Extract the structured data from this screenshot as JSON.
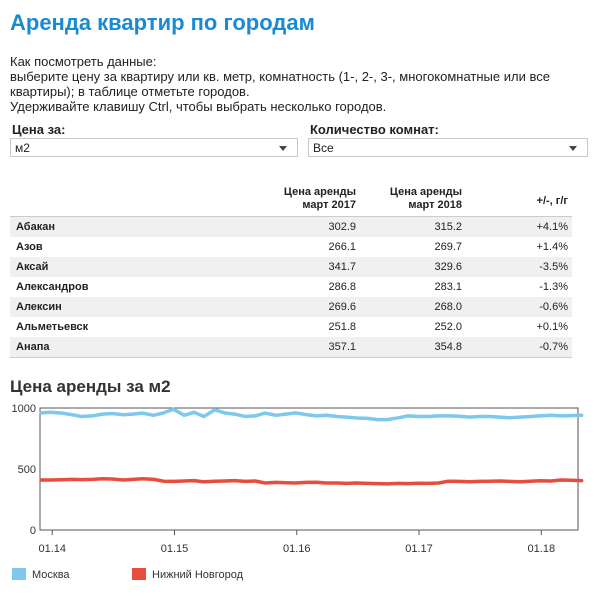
{
  "page": {
    "title": "Аренда квартир по городам",
    "intro": [
      "Как посмотреть данные:",
      "выберите цену за квартиру или кв. метр, комнатность (1-, 2-, 3-, многокомнатные или все",
      "квартиры); в таблице отметьте городов.",
      "Удерживайте клавишу Ctrl, чтобы выбрать несколько городов."
    ]
  },
  "controls": {
    "price_label": "Цена за:",
    "price_value": "м2",
    "rooms_label": "Количество комнат:",
    "rooms_value": "Все"
  },
  "table": {
    "headers": {
      "col1": [
        "Цена аренды",
        "март 2017"
      ],
      "col2": [
        "Цена аренды",
        "март 2018"
      ],
      "col3": "+/-, г/г"
    },
    "rows": [
      {
        "city": "Абакан",
        "v2017": "302.9",
        "v2018": "315.2",
        "change": "+4.1%"
      },
      {
        "city": "Азов",
        "v2017": "266.1",
        "v2018": "269.7",
        "change": "+1.4%"
      },
      {
        "city": "Аксай",
        "v2017": "341.7",
        "v2018": "329.6",
        "change": "-3.5%"
      },
      {
        "city": "Александров",
        "v2017": "286.8",
        "v2018": "283.1",
        "change": "-1.3%"
      },
      {
        "city": "Алексин",
        "v2017": "269.6",
        "v2018": "268.0",
        "change": "-0.6%"
      },
      {
        "city": "Альметьевск",
        "v2017": "251.8",
        "v2018": "252.0",
        "change": "+0.1%"
      },
      {
        "city": "Анапа",
        "v2017": "357.1",
        "v2018": "354.8",
        "change": "-0.7%"
      }
    ]
  },
  "chart_data": {
    "type": "line",
    "title": "Цена аренды за м2",
    "xlabel": "",
    "ylabel": "",
    "ylim": [
      0,
      1000
    ],
    "yticks": [
      0,
      500,
      1000
    ],
    "xlim": [
      2013.9,
      2018.3
    ],
    "xticks": [
      {
        "value": 2014.0,
        "label": "01.14"
      },
      {
        "value": 2015.0,
        "label": "01.15"
      },
      {
        "value": 2016.0,
        "label": "01.16"
      },
      {
        "value": 2017.0,
        "label": "01.17"
      },
      {
        "value": 2018.0,
        "label": "01.18"
      }
    ],
    "grid": false,
    "legend_position": "bottom-left",
    "series": [
      {
        "name": "Москва",
        "color": "#7ec8ec",
        "x": [
          2013.75,
          2013.83,
          2013.92,
          2014.0,
          2014.08,
          2014.17,
          2014.25,
          2014.33,
          2014.42,
          2014.5,
          2014.58,
          2014.67,
          2014.75,
          2014.83,
          2014.92,
          2015.0,
          2015.08,
          2015.17,
          2015.25,
          2015.33,
          2015.42,
          2015.5,
          2015.58,
          2015.67,
          2015.75,
          2015.83,
          2015.92,
          2016.0,
          2016.08,
          2016.17,
          2016.25,
          2016.33,
          2016.42,
          2016.5,
          2016.58,
          2016.67,
          2016.75,
          2016.83,
          2016.92,
          2017.0,
          2017.08,
          2017.17,
          2017.25,
          2017.33,
          2017.42,
          2017.5,
          2017.58,
          2017.67,
          2017.75,
          2017.83,
          2017.92,
          2018.0,
          2018.08,
          2018.17
        ],
        "values": [
          960,
          965,
          958,
          945,
          930,
          935,
          950,
          955,
          945,
          950,
          958,
          940,
          960,
          990,
          940,
          965,
          930,
          985,
          960,
          950,
          930,
          935,
          958,
          940,
          950,
          960,
          945,
          935,
          940,
          930,
          925,
          918,
          915,
          905,
          905,
          920,
          935,
          930,
          930,
          935,
          935,
          932,
          925,
          930,
          930,
          925,
          920,
          925,
          930,
          935,
          940,
          935,
          938,
          940
        ]
      },
      {
        "name": "Нижний Новгород",
        "color": "#e84c3d",
        "x": [
          2013.75,
          2013.83,
          2013.92,
          2014.0,
          2014.08,
          2014.17,
          2014.25,
          2014.33,
          2014.42,
          2014.5,
          2014.58,
          2014.67,
          2014.75,
          2014.83,
          2014.92,
          2015.0,
          2015.08,
          2015.17,
          2015.25,
          2015.33,
          2015.42,
          2015.5,
          2015.58,
          2015.67,
          2015.75,
          2015.83,
          2015.92,
          2016.0,
          2016.08,
          2016.17,
          2016.25,
          2016.33,
          2016.42,
          2016.5,
          2016.58,
          2016.67,
          2016.75,
          2016.83,
          2016.92,
          2017.0,
          2017.08,
          2017.17,
          2017.25,
          2017.33,
          2017.42,
          2017.5,
          2017.58,
          2017.67,
          2017.75,
          2017.83,
          2017.92,
          2018.0,
          2018.08,
          2018.17
        ],
        "values": [
          410,
          410,
          412,
          415,
          413,
          415,
          420,
          418,
          410,
          415,
          420,
          415,
          400,
          398,
          402,
          405,
          395,
          400,
          402,
          405,
          398,
          402,
          385,
          390,
          388,
          385,
          390,
          392,
          385,
          385,
          382,
          385,
          382,
          380,
          378,
          382,
          380,
          383,
          382,
          385,
          400,
          398,
          395,
          398,
          400,
          402,
          398,
          396,
          400,
          404,
          402,
          410,
          408,
          405
        ]
      }
    ]
  }
}
